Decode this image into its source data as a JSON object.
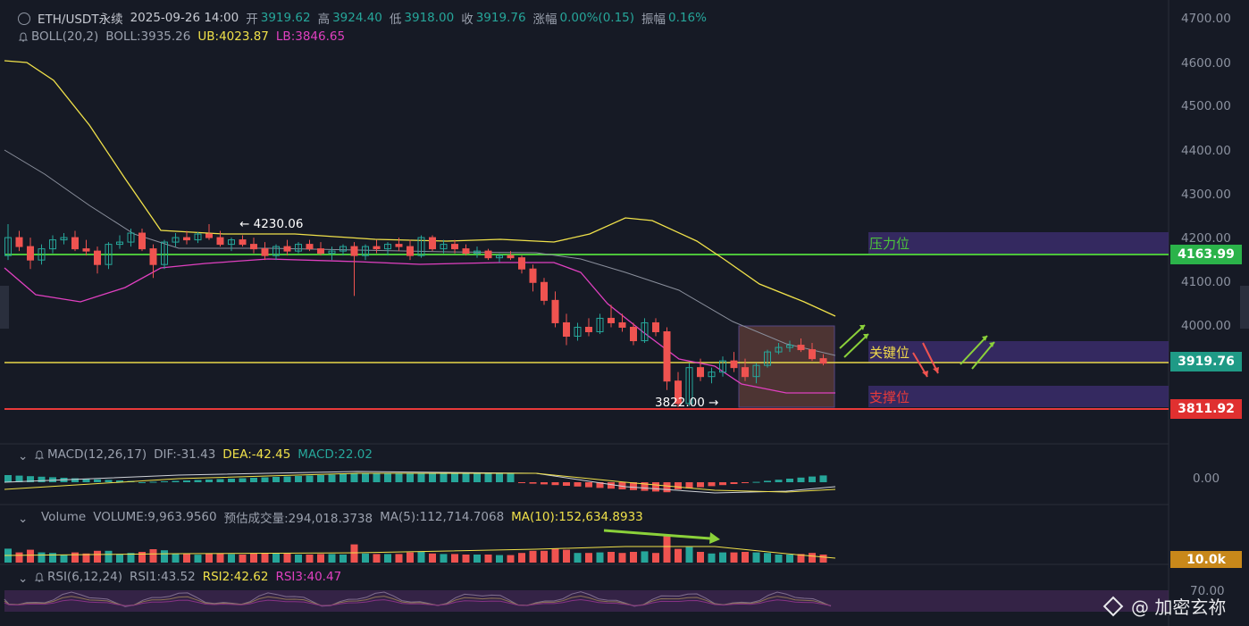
{
  "header": {
    "symbol": "ETH/USDT永续",
    "datetime": "2025-09-26 14:00",
    "open_label": "开",
    "open": "3919.62",
    "high_label": "高",
    "high": "3924.40",
    "low_label": "低",
    "low": "3918.00",
    "close_label": "收",
    "close": "3919.76",
    "change_label": "涨幅",
    "change": "0.00%(0.15)",
    "amp_label": "振幅",
    "amp": "0.16%"
  },
  "boll": {
    "name": "BOLL(20,2)",
    "mid": "BOLL:3935.26",
    "ub": "UB:4023.87",
    "lb": "LB:3846.65"
  },
  "macd": {
    "name": "MACD(12,26,17)",
    "dif": "DIF:-31.43",
    "dea": "DEA:-42.45",
    "macd": "MACD:22.02"
  },
  "volume": {
    "name": "Volume",
    "vol": "VOLUME:9,963.9560",
    "est": "预估成交量:294,018.3738",
    "ma5": "MA(5):112,714.7068",
    "ma10": "MA(10):152,634.8933"
  },
  "rsi": {
    "name": "RSI(6,12,24)",
    "rsi1": "RSI1:43.52",
    "rsi2": "RSI2:42.62",
    "rsi3": "RSI3:40.47"
  },
  "price_axis": [
    "4700.00",
    "4600.00",
    "4500.00",
    "4400.00",
    "4300.00",
    "4200.00",
    "4100.00",
    "4000.00"
  ],
  "macd_axis": "0.00",
  "rsi_axis": "70.00",
  "tags": {
    "resistance": "4163.99",
    "current": "3919.76",
    "support": "3811.92",
    "volume": "10.0k"
  },
  "annotations": {
    "high": "4230.06",
    "low": "3822.00"
  },
  "zones": {
    "resistance": "压力位",
    "key": "关键位",
    "support": "支撑位"
  },
  "watermark": "@ 加密玄祢",
  "colors": {
    "up": "#26a69a",
    "down": "#ef5350",
    "upper": "#f0e14a",
    "lower": "#e040c0",
    "mid": "#8a8f9c",
    "resistance_line": "#4cc43a",
    "support_line": "#e83a3a"
  },
  "chart_data": {
    "type": "candlestick",
    "title": "ETH/USDT永续",
    "interval_end": "2025-09-26 14:00",
    "y_axis": {
      "range": [
        3740,
        4730
      ],
      "ticks": [
        4000,
        4100,
        4200,
        4300,
        4400,
        4500,
        4600,
        4700
      ]
    },
    "grid": false,
    "candles_ohlc": [
      [
        4160,
        4230,
        4150,
        4200
      ],
      [
        4200,
        4215,
        4170,
        4180
      ],
      [
        4180,
        4200,
        4130,
        4150
      ],
      [
        4150,
        4185,
        4140,
        4175
      ],
      [
        4175,
        4205,
        4165,
        4195
      ],
      [
        4195,
        4210,
        4185,
        4200
      ],
      [
        4200,
        4215,
        4170,
        4175
      ],
      [
        4175,
        4195,
        4160,
        4170
      ],
      [
        4170,
        4180,
        4120,
        4140
      ],
      [
        4140,
        4190,
        4130,
        4185
      ],
      [
        4185,
        4205,
        4175,
        4190
      ],
      [
        4190,
        4220,
        4180,
        4210
      ],
      [
        4210,
        4220,
        4170,
        4175
      ],
      [
        4175,
        4185,
        4110,
        4140
      ],
      [
        4140,
        4195,
        4130,
        4190
      ],
      [
        4190,
        4210,
        4180,
        4200
      ],
      [
        4200,
        4215,
        4185,
        4195
      ],
      [
        4195,
        4212,
        4188,
        4208
      ],
      [
        4208,
        4230,
        4195,
        4200
      ],
      [
        4200,
        4215,
        4180,
        4185
      ],
      [
        4185,
        4200,
        4170,
        4195
      ],
      [
        4195,
        4205,
        4180,
        4185
      ],
      [
        4185,
        4200,
        4165,
        4175
      ],
      [
        4175,
        4190,
        4150,
        4160
      ],
      [
        4160,
        4185,
        4150,
        4180
      ],
      [
        4180,
        4195,
        4160,
        4170
      ],
      [
        4170,
        4190,
        4165,
        4185
      ],
      [
        4185,
        4195,
        4170,
        4175
      ],
      [
        4175,
        4190,
        4160,
        4165
      ],
      [
        4165,
        4180,
        4150,
        4170
      ],
      [
        4170,
        4185,
        4160,
        4180
      ],
      [
        4180,
        4190,
        4070,
        4160
      ],
      [
        4160,
        4185,
        4150,
        4180
      ],
      [
        4180,
        4195,
        4165,
        4175
      ],
      [
        4175,
        4190,
        4160,
        4185
      ],
      [
        4185,
        4200,
        4170,
        4180
      ],
      [
        4180,
        4195,
        4150,
        4160
      ],
      [
        4160,
        4205,
        4155,
        4200
      ],
      [
        4200,
        4205,
        4170,
        4175
      ],
      [
        4175,
        4195,
        4165,
        4185
      ],
      [
        4185,
        4195,
        4165,
        4175
      ],
      [
        4175,
        4185,
        4160,
        4165
      ],
      [
        4165,
        4180,
        4155,
        4170
      ],
      [
        4170,
        4175,
        4150,
        4155
      ],
      [
        4155,
        4165,
        4145,
        4160
      ],
      [
        4160,
        4170,
        4150,
        4155
      ],
      [
        4155,
        4160,
        4120,
        4130
      ],
      [
        4130,
        4140,
        4080,
        4100
      ],
      [
        4100,
        4110,
        4050,
        4060
      ],
      [
        4060,
        4080,
        4000,
        4010
      ],
      [
        4010,
        4030,
        3960,
        3980
      ],
      [
        3980,
        4010,
        3970,
        4000
      ],
      [
        4000,
        4020,
        3980,
        3990
      ],
      [
        3990,
        4030,
        3985,
        4020
      ],
      [
        4020,
        4050,
        4000,
        4010
      ],
      [
        4010,
        4030,
        3990,
        4000
      ],
      [
        4000,
        4010,
        3960,
        3970
      ],
      [
        3970,
        4020,
        3965,
        4010
      ],
      [
        4010,
        4020,
        3980,
        3990
      ],
      [
        3990,
        4000,
        3860,
        3880
      ],
      [
        3880,
        3900,
        3822,
        3830
      ],
      [
        3830,
        3920,
        3825,
        3910
      ],
      [
        3910,
        3930,
        3880,
        3890
      ],
      [
        3890,
        3910,
        3875,
        3900
      ],
      [
        3900,
        3935,
        3890,
        3925
      ],
      [
        3925,
        3945,
        3900,
        3910
      ],
      [
        3910,
        3930,
        3880,
        3890
      ],
      [
        3890,
        3920,
        3875,
        3915
      ],
      [
        3915,
        3950,
        3910,
        3945
      ],
      [
        3945,
        3965,
        3940,
        3955
      ],
      [
        3955,
        3970,
        3945,
        3960
      ],
      [
        3960,
        3975,
        3945,
        3950
      ],
      [
        3950,
        3965,
        3925,
        3930
      ],
      [
        3930,
        3940,
        3915,
        3920
      ]
    ],
    "indicators": {
      "boll_upper_note": "peaks near 4610 at left, ~4250 mid, ends ~4020",
      "boll_lower_note": "dips near 4050 at left, ends ~3850"
    },
    "levels": [
      {
        "name": "压力位",
        "value": 4163.99
      },
      {
        "name": "关键位",
        "value": 3919.76
      },
      {
        "name": "支撑位",
        "value": 3811.92
      }
    ]
  }
}
